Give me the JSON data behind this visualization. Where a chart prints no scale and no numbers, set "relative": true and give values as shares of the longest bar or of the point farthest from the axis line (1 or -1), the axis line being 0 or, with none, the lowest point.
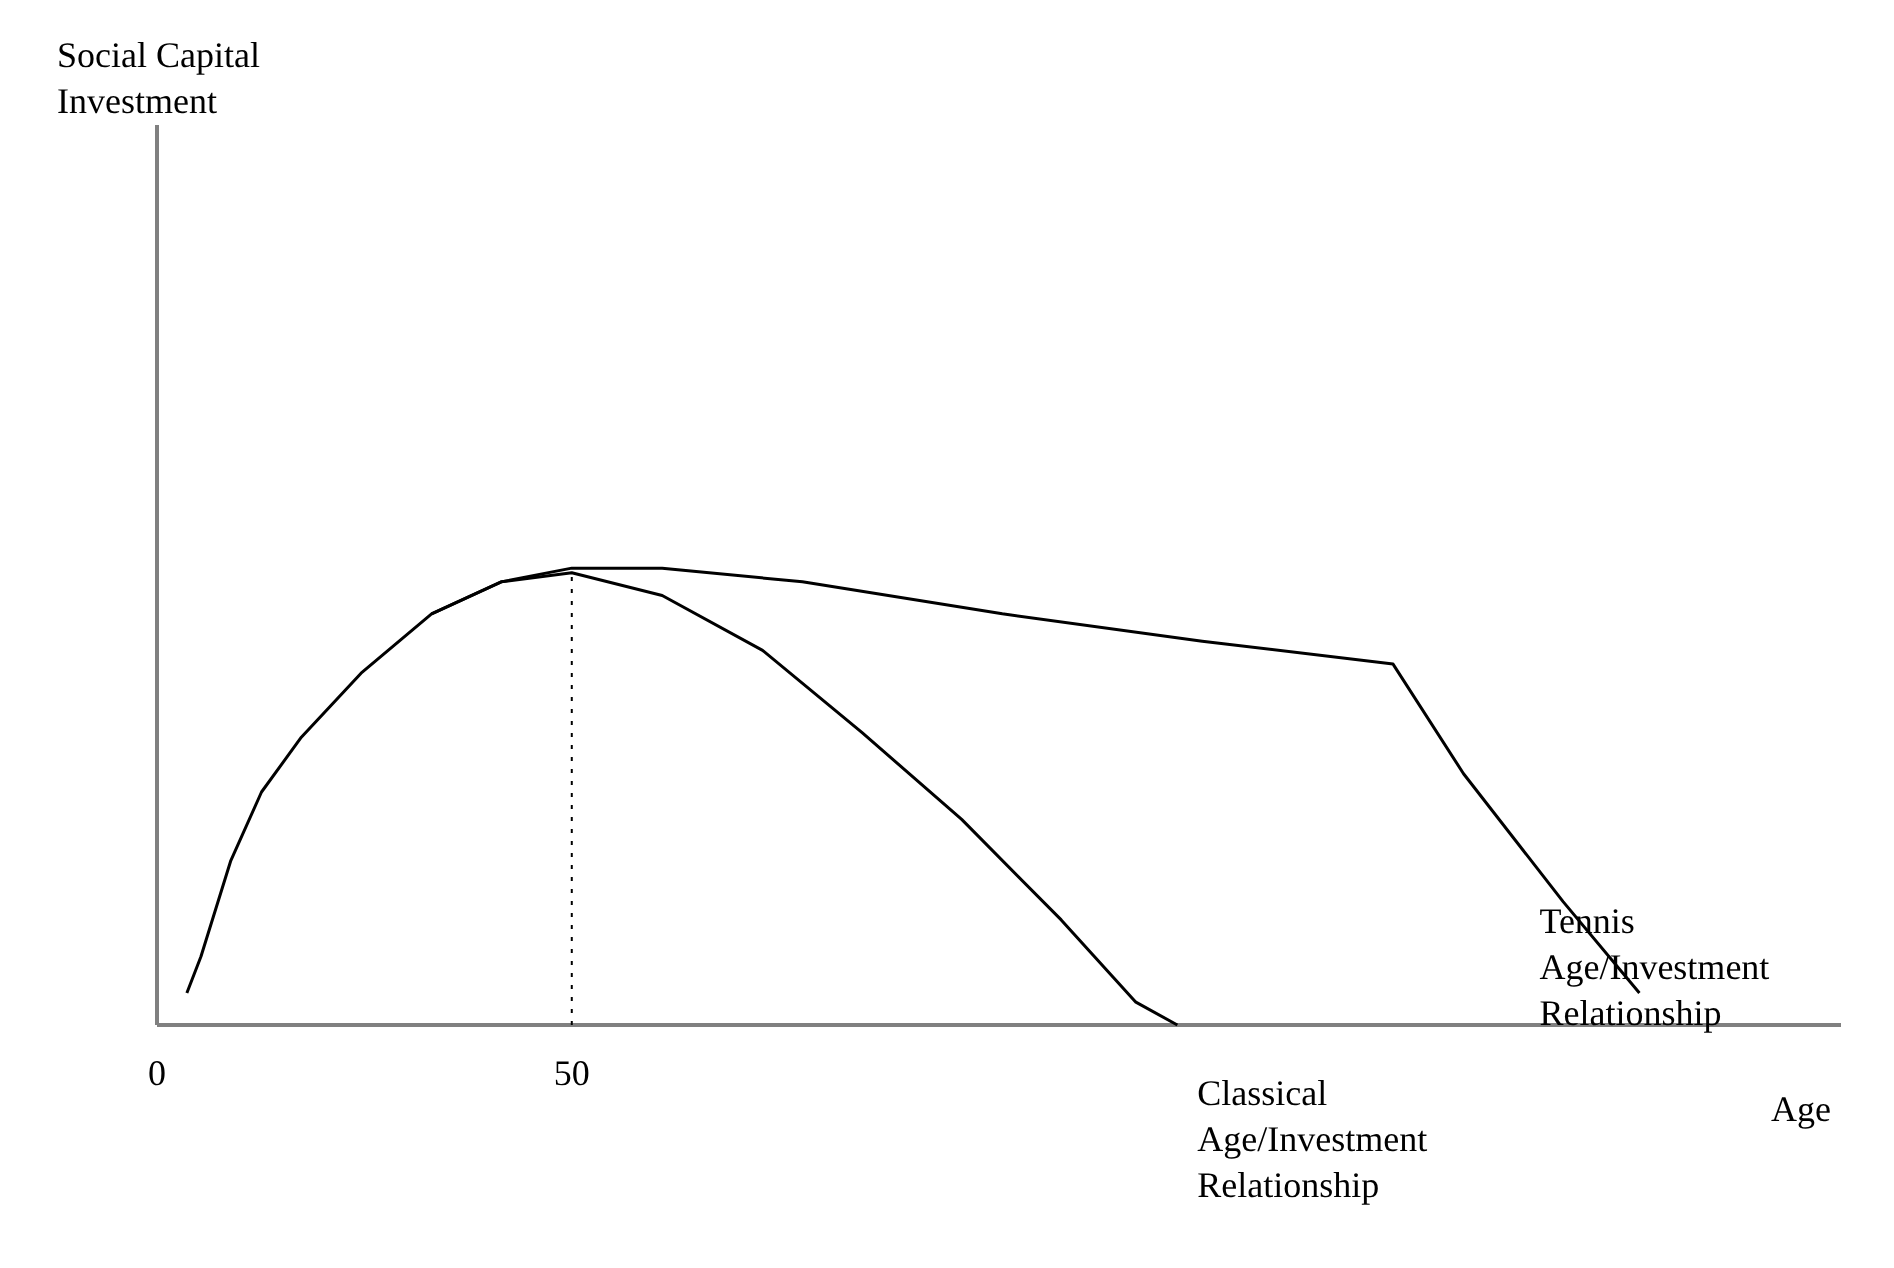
{
  "chart_data": {
    "type": "line",
    "relative": true,
    "xlabel": "Age",
    "annotations": [
      "Social Capital Investment"
    ],
    "xlim": [
      0,
      203
    ],
    "xticks": [
      0,
      50
    ],
    "grid": false,
    "legend": false,
    "marker": "none",
    "line_style": "solid",
    "series": [
      {
        "name": "Tennis Age/Investment Relationship",
        "color": "#000000",
        "x": [
          3.6,
          5.3,
          8.9,
          12.6,
          17.4,
          24.6,
          33.1,
          41.5,
          50,
          60.9,
          77.8,
          101.9,
          126,
          149,
          157.5,
          169.5,
          178.7
        ],
        "values": [
          0.07,
          0.15,
          0.36,
          0.51,
          0.63,
          0.77,
          0.9,
          0.97,
          1.0,
          1.0,
          0.97,
          0.9,
          0.84,
          0.79,
          0.55,
          0.27,
          0.07
        ]
      },
      {
        "name": "Classical Age/Investment Relationship",
        "color": "#000000",
        "x": [
          33.1,
          41.5,
          50,
          60.9,
          73,
          85,
          97,
          109,
          118,
          123
        ],
        "values": [
          0.9,
          0.97,
          0.99,
          0.94,
          0.82,
          0.64,
          0.45,
          0.23,
          0.05,
          0
        ]
      }
    ],
    "ref_lines": [
      {
        "axis": "x",
        "value": 50,
        "line_style": "dotted",
        "color": "#000000"
      }
    ]
  }
}
